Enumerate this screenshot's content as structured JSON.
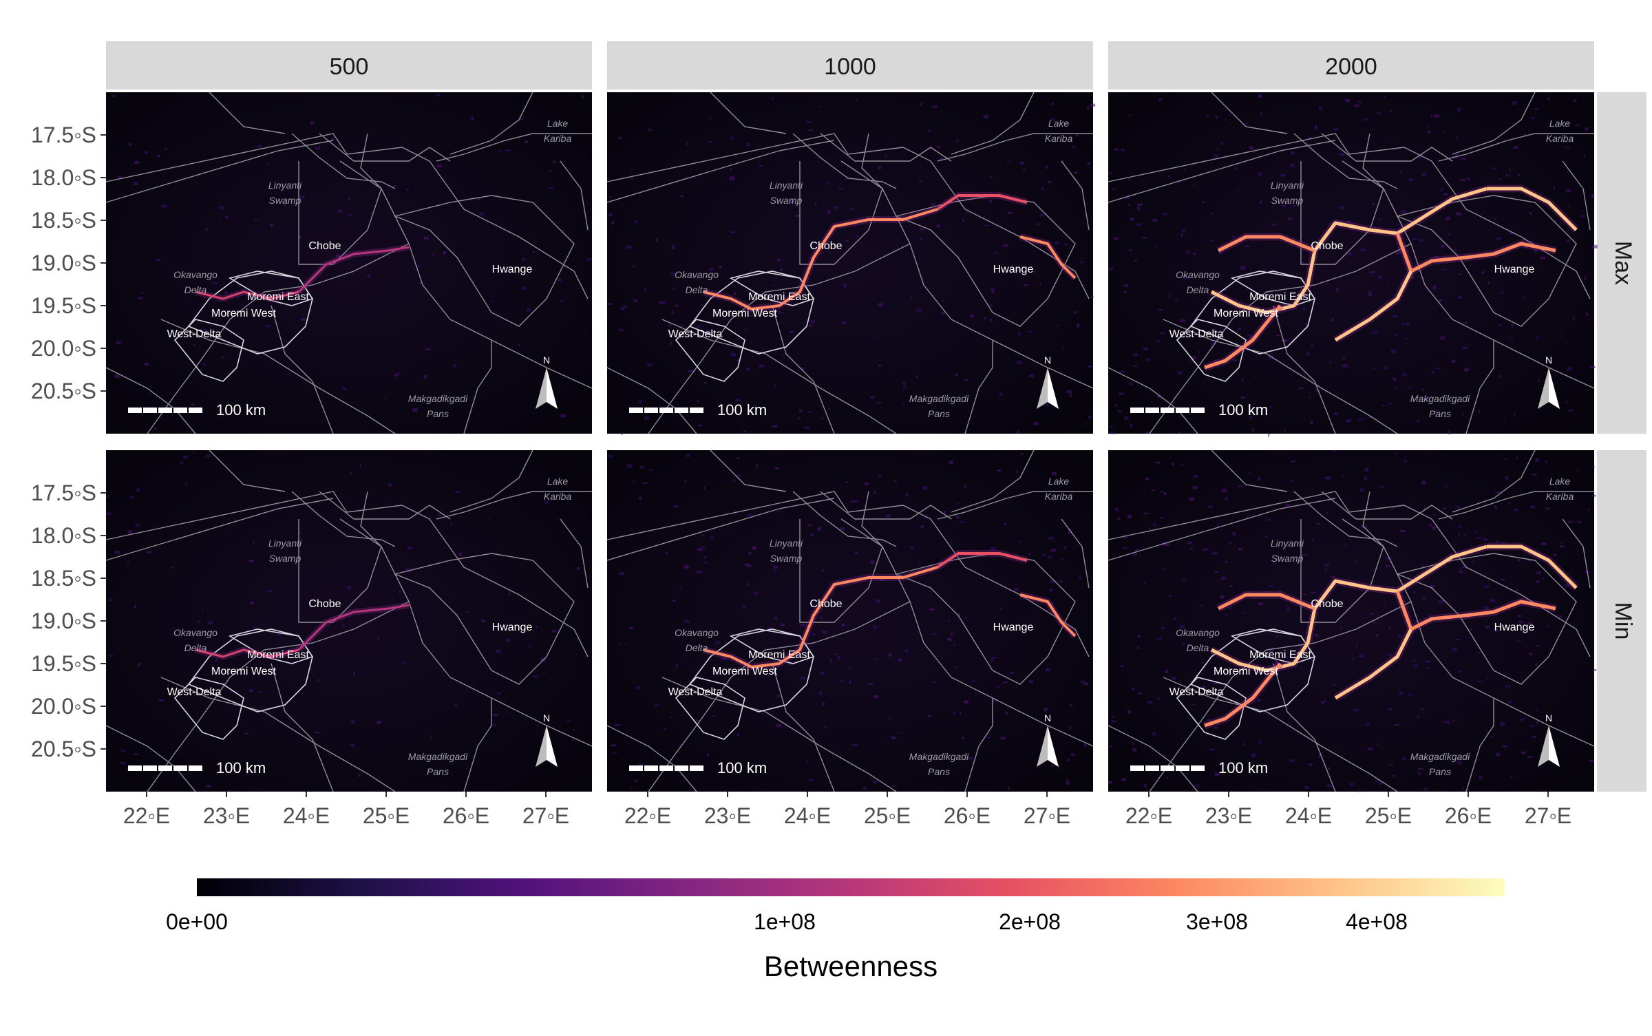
{
  "figure": {
    "columns": [
      "500",
      "1000",
      "2000"
    ],
    "rows": [
      "Max",
      "Min"
    ],
    "y_ticks": [
      "17.5◦S",
      "18.0◦S",
      "18.5◦S",
      "19.0◦S",
      "19.5◦S",
      "20.0◦S",
      "20.5◦S"
    ],
    "x_ticks": [
      "22◦E",
      "23◦E",
      "24◦E",
      "25◦E",
      "26◦E",
      "27◦E"
    ],
    "map_labels": {
      "chobe": "Chobe",
      "hwange": "Hwange",
      "moremi_east": "Moremi East",
      "moremi_west": "Moremi West",
      "west_delta": "West-Delta",
      "okavango_1": "Okavango",
      "okavango_2": "Delta",
      "linyanti_1": "Linyanti",
      "linyanti_2": "Swamp",
      "lake_1": "Lake",
      "lake_2": "Kariba",
      "makgadikgadi_1": "Makgadikgadi",
      "makgadikgadi_2": "Pans"
    },
    "scale_bar_label": "100 km",
    "north_arrow_label": "N",
    "legend": {
      "title": "Betweenness",
      "ticks": [
        "0e+00",
        "1e+08",
        "2e+08",
        "3e+08",
        "4e+08"
      ],
      "tick_values": [
        0,
        100000000,
        200000000,
        300000000,
        400000000
      ],
      "colors": [
        "#000004",
        "#1d1147",
        "#51127c",
        "#832681",
        "#b73779",
        "#e75263",
        "#fc8961",
        "#fec488",
        "#fcfdbf"
      ]
    },
    "colors": {
      "panel_bg": "#0a0612",
      "strip_bg": "#d9d9d9"
    }
  }
}
